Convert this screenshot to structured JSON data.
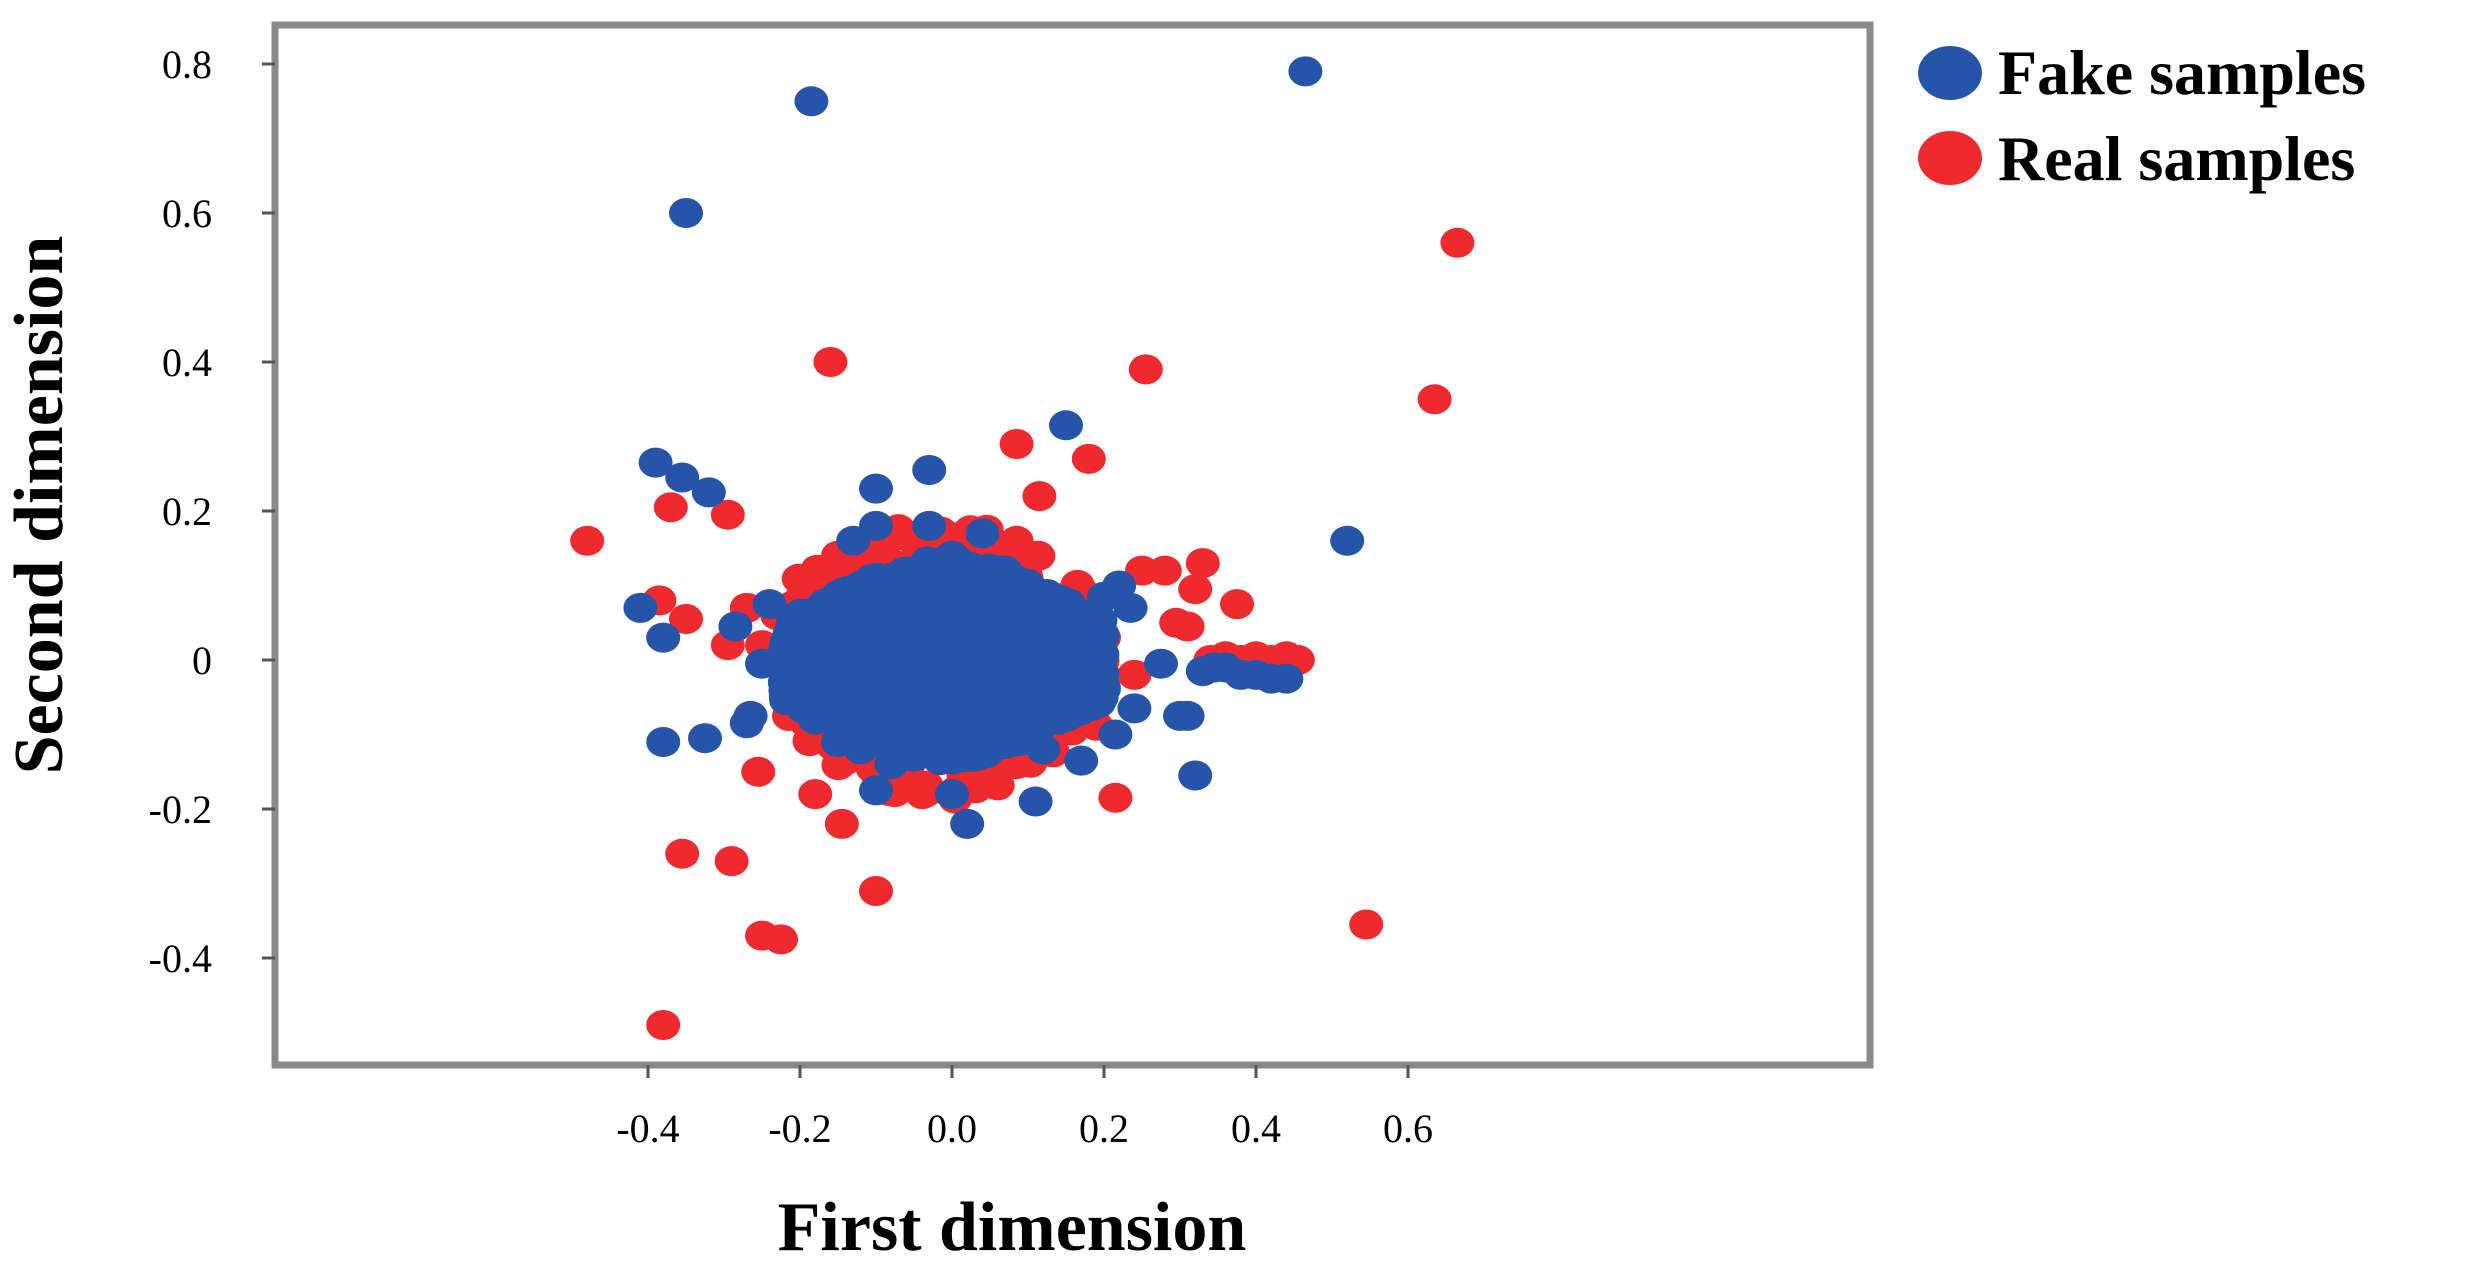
{
  "chart_data": {
    "type": "scatter",
    "title": "",
    "xlabel": "First dimension",
    "ylabel": "Second dimension",
    "xlim": [
      -0.53,
      0.73
    ],
    "ylim": [
      -0.54,
      0.85
    ],
    "x_ticks": [
      -0.4,
      -0.2,
      0.0,
      0.2,
      0.4,
      0.6
    ],
    "x_tick_labels": [
      "-0.4",
      "-0.2",
      "0.0",
      "0.2",
      "0.4",
      "0.6"
    ],
    "y_ticks": [
      -0.4,
      -0.2,
      0,
      0.2,
      0.4,
      0.6,
      0.8
    ],
    "y_tick_labels": [
      "-0.4",
      "-0.2",
      "0",
      "0.2",
      "0.4",
      "0.6",
      "0.8"
    ],
    "grid": false,
    "legend_position": "outside-top-right",
    "series": [
      {
        "name": "Real samples",
        "color": "#ee2a2f",
        "points": [
          [
            0.665,
            0.56
          ],
          [
            0.635,
            0.35
          ],
          [
            0.545,
            -0.355
          ],
          [
            0.255,
            0.39
          ],
          [
            -0.16,
            0.4
          ],
          [
            -0.48,
            0.16
          ],
          [
            -0.37,
            0.205
          ],
          [
            -0.295,
            0.195
          ],
          [
            0.085,
            0.29
          ],
          [
            0.18,
            0.27
          ],
          [
            0.115,
            0.22
          ],
          [
            0.085,
            0.16
          ],
          [
            0.25,
            0.12
          ],
          [
            0.28,
            0.12
          ],
          [
            0.33,
            0.13
          ],
          [
            0.32,
            0.095
          ],
          [
            0.375,
            0.075
          ],
          [
            0.31,
            0.045
          ],
          [
            0.295,
            0.05
          ],
          [
            -0.385,
            0.08
          ],
          [
            -0.35,
            0.055
          ],
          [
            -0.295,
            0.02
          ],
          [
            -0.27,
            0.07
          ],
          [
            -0.25,
            0.02
          ],
          [
            -0.38,
            -0.49
          ],
          [
            -0.355,
            -0.26
          ],
          [
            -0.29,
            -0.27
          ],
          [
            -0.255,
            -0.15
          ],
          [
            -0.25,
            -0.37
          ],
          [
            -0.225,
            -0.375
          ],
          [
            -0.18,
            -0.18
          ],
          [
            -0.145,
            -0.22
          ],
          [
            -0.1,
            -0.31
          ],
          [
            0.215,
            -0.185
          ],
          [
            0.24,
            -0.02
          ],
          [
            -0.2,
            0.08
          ],
          [
            -0.23,
            0.06
          ],
          [
            -0.17,
            0.1
          ],
          [
            -0.15,
            0.14
          ],
          [
            -0.12,
            0.15
          ],
          [
            -0.08,
            0.13
          ],
          [
            -0.05,
            0.16
          ],
          [
            -0.1,
            -0.15
          ],
          [
            -0.07,
            -0.17
          ],
          [
            -0.04,
            -0.12
          ],
          [
            0.02,
            -0.1
          ],
          [
            0.06,
            -0.12
          ],
          [
            0.1,
            -0.09
          ],
          [
            0.13,
            -0.07
          ],
          [
            0.18,
            -0.05
          ],
          [
            0.2,
            0.03
          ],
          [
            0.12,
            0.07
          ],
          [
            0.15,
            0.05
          ],
          [
            -0.19,
            0.02
          ],
          [
            -0.17,
            -0.05
          ],
          [
            0.34,
            0.0
          ],
          [
            0.36,
            0.005
          ],
          [
            0.38,
            0.0
          ],
          [
            0.4,
            0.005
          ],
          [
            0.42,
            0.0
          ],
          [
            0.44,
            0.005
          ],
          [
            0.455,
            0.0
          ],
          [
            0.37,
            -0.01
          ],
          [
            0.39,
            -0.005
          ],
          [
            0.41,
            -0.005
          ],
          [
            0.43,
            -0.005
          ],
          [
            -0.13,
            0.12
          ],
          [
            -0.2,
            0.05
          ],
          [
            0.05,
            0.12
          ],
          [
            0.09,
            0.1
          ],
          [
            -0.06,
            -0.15
          ],
          [
            0.0,
            -0.13
          ],
          [
            0.16,
            -0.02
          ],
          [
            -0.12,
            -0.13
          ],
          [
            -0.09,
            0.1
          ]
        ]
      },
      {
        "name": "Fake samples",
        "color": "#2554a8",
        "points": [
          [
            0.465,
            0.79
          ],
          [
            -0.185,
            0.75
          ],
          [
            -0.35,
            0.6
          ],
          [
            0.15,
            0.315
          ],
          [
            0.52,
            0.16
          ],
          [
            -0.39,
            0.265
          ],
          [
            -0.355,
            0.245
          ],
          [
            -0.32,
            0.225
          ],
          [
            -0.1,
            0.23
          ],
          [
            -0.03,
            0.255
          ],
          [
            -0.41,
            0.07
          ],
          [
            -0.38,
            0.03
          ],
          [
            -0.38,
            -0.11
          ],
          [
            -0.325,
            -0.105
          ],
          [
            -0.285,
            0.045
          ],
          [
            -0.24,
            0.075
          ],
          [
            -0.25,
            -0.005
          ],
          [
            -0.265,
            -0.075
          ],
          [
            -0.27,
            -0.085
          ],
          [
            -0.1,
            -0.175
          ],
          [
            0.02,
            -0.22
          ],
          [
            0.0,
            -0.18
          ],
          [
            0.11,
            -0.19
          ],
          [
            0.17,
            -0.135
          ],
          [
            0.215,
            -0.1
          ],
          [
            0.24,
            -0.065
          ],
          [
            0.32,
            -0.155
          ],
          [
            0.3,
            -0.075
          ],
          [
            0.31,
            -0.075
          ],
          [
            0.22,
            0.1
          ],
          [
            0.235,
            0.07
          ],
          [
            0.2,
            0.085
          ],
          [
            0.275,
            -0.005
          ],
          [
            0.33,
            -0.015
          ],
          [
            0.36,
            -0.01
          ],
          [
            0.38,
            -0.02
          ],
          [
            0.4,
            -0.02
          ],
          [
            0.42,
            -0.025
          ],
          [
            0.44,
            -0.025
          ],
          [
            0.345,
            -0.01
          ],
          [
            0.0,
            0.14
          ],
          [
            0.04,
            0.17
          ],
          [
            0.07,
            0.12
          ],
          [
            -0.13,
            0.16
          ],
          [
            -0.1,
            0.18
          ],
          [
            -0.03,
            0.18
          ],
          [
            0.12,
            -0.12
          ],
          [
            0.14,
            -0.08
          ],
          [
            0.09,
            0.07
          ],
          [
            0.16,
            0.03
          ],
          [
            -0.2,
            0.0
          ],
          [
            -0.22,
            -0.03
          ],
          [
            -0.18,
            -0.08
          ],
          [
            -0.15,
            -0.11
          ],
          [
            -0.12,
            -0.12
          ],
          [
            -0.08,
            -0.14
          ],
          [
            -0.05,
            -0.13
          ],
          [
            0.02,
            -0.12
          ],
          [
            0.06,
            -0.11
          ],
          [
            0.1,
            -0.1
          ],
          [
            -0.15,
            0.08
          ],
          [
            -0.12,
            0.1
          ],
          [
            -0.08,
            0.11
          ],
          [
            -0.04,
            0.12
          ],
          [
            0.03,
            0.11
          ],
          [
            0.08,
            0.09
          ],
          [
            0.12,
            0.06
          ],
          [
            0.18,
            0.02
          ],
          [
            0.19,
            -0.03
          ],
          [
            0.17,
            -0.06
          ],
          [
            -0.17,
            0.04
          ],
          [
            -0.19,
            -0.02
          ],
          [
            -0.16,
            -0.06
          ],
          [
            0.14,
            0.01
          ],
          [
            -0.07,
            0.02
          ]
        ],
        "dense_cluster": {
          "x_range": [
            -0.22,
            0.2
          ],
          "y_range": [
            -0.11,
            0.12
          ],
          "center": [
            -0.01,
            0.0
          ]
        }
      }
    ]
  },
  "legend": {
    "items": [
      {
        "label": "Fake samples",
        "color": "#2554a8"
      },
      {
        "label": "Real samples",
        "color": "#ee2a2f"
      }
    ]
  }
}
